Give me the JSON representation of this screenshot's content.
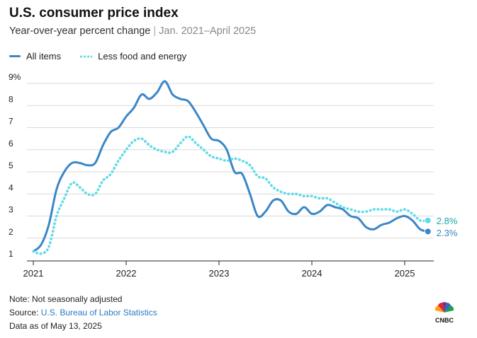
{
  "header": {
    "title": "U.S. consumer price index",
    "subtitle": "Year-over-year percent change",
    "subtitle_range": "Jan. 2021–April 2025"
  },
  "footer": {
    "note": "Note: Not seasonally adjusted",
    "source_label": "Source: ",
    "source_link": "U.S. Bureau of Labor Statistics",
    "data_as_of": "Data as of May 13, 2025"
  },
  "logo": {
    "text": "CNBC"
  },
  "colors": {
    "all_items": "#3a86c8",
    "core": "#5fdbe8",
    "grid": "#d9d9d9",
    "end_label_all": "#3a86c8",
    "end_label_core": "#1aa6a6"
  },
  "chart_data": {
    "type": "line",
    "x_ticks": [
      "2021",
      "2022",
      "2023",
      "2024",
      "2025"
    ],
    "y_ticks": [
      "1",
      "2",
      "3",
      "4",
      "5",
      "6",
      "7",
      "8",
      "9%"
    ],
    "ylim": [
      1,
      9
    ],
    "x": [
      "2021-01",
      "2021-02",
      "2021-03",
      "2021-04",
      "2021-05",
      "2021-06",
      "2021-07",
      "2021-08",
      "2021-09",
      "2021-10",
      "2021-11",
      "2021-12",
      "2022-01",
      "2022-02",
      "2022-03",
      "2022-04",
      "2022-05",
      "2022-06",
      "2022-07",
      "2022-08",
      "2022-09",
      "2022-10",
      "2022-11",
      "2022-12",
      "2023-01",
      "2023-02",
      "2023-03",
      "2023-04",
      "2023-05",
      "2023-06",
      "2023-07",
      "2023-08",
      "2023-09",
      "2023-10",
      "2023-11",
      "2023-12",
      "2024-01",
      "2024-02",
      "2024-03",
      "2024-04",
      "2024-05",
      "2024-06",
      "2024-07",
      "2024-08",
      "2024-09",
      "2024-10",
      "2024-11",
      "2024-12",
      "2025-01",
      "2025-02",
      "2025-03",
      "2025-04"
    ],
    "series": [
      {
        "name": "All items",
        "values": [
          1.4,
          1.7,
          2.6,
          4.2,
          5.0,
          5.4,
          5.4,
          5.3,
          5.4,
          6.2,
          6.8,
          7.0,
          7.5,
          7.9,
          8.5,
          8.3,
          8.6,
          9.1,
          8.5,
          8.3,
          8.2,
          7.7,
          7.1,
          6.5,
          6.4,
          6.0,
          5.0,
          4.9,
          4.0,
          3.0,
          3.2,
          3.7,
          3.7,
          3.2,
          3.1,
          3.4,
          3.1,
          3.2,
          3.5,
          3.4,
          3.3,
          3.0,
          2.9,
          2.5,
          2.4,
          2.6,
          2.7,
          2.9,
          3.0,
          2.8,
          2.4,
          2.3
        ],
        "end_label": "2.3%"
      },
      {
        "name": "Less food and energy",
        "values": [
          1.4,
          1.3,
          1.6,
          3.0,
          3.8,
          4.5,
          4.3,
          4.0,
          4.0,
          4.6,
          4.9,
          5.5,
          6.0,
          6.4,
          6.5,
          6.2,
          6.0,
          5.9,
          5.9,
          6.3,
          6.6,
          6.3,
          6.0,
          5.7,
          5.6,
          5.5,
          5.6,
          5.5,
          5.3,
          4.8,
          4.7,
          4.3,
          4.1,
          4.0,
          4.0,
          3.9,
          3.9,
          3.8,
          3.8,
          3.6,
          3.4,
          3.3,
          3.2,
          3.2,
          3.3,
          3.3,
          3.3,
          3.2,
          3.3,
          3.1,
          2.8,
          2.8
        ],
        "end_label": "2.8%"
      }
    ]
  }
}
